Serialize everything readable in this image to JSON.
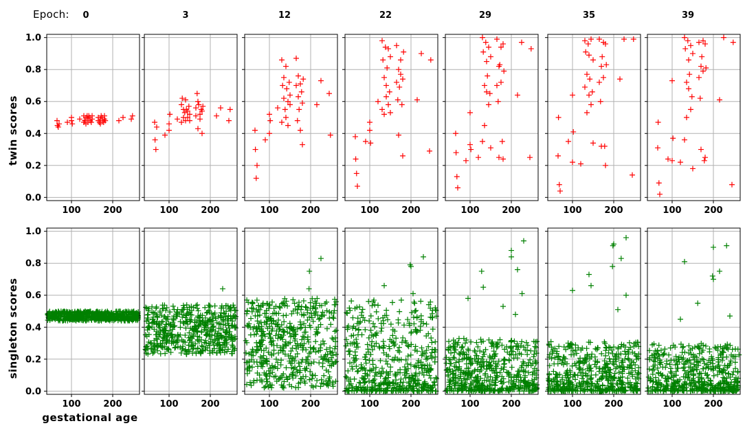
{
  "chart_data": {
    "type": "scatter",
    "marker": "+",
    "epoch_label": "Epoch:",
    "epochs": [
      "0",
      "3",
      "12",
      "22",
      "29",
      "35",
      "39"
    ],
    "xlabel": "gestational age",
    "xlim": [
      40,
      265
    ],
    "xticks": [
      100,
      200
    ],
    "ylim": [
      -0.02,
      1.02
    ],
    "yticks": [
      "0.0",
      "0.2",
      "0.4",
      "0.6",
      "0.8",
      "1.0"
    ],
    "grid": true,
    "rows": [
      {
        "name": "twin scores",
        "ylabel": "twin scores",
        "color": "#ff0000",
        "x": [
          65,
          66,
          68,
          70,
          90,
          100,
          100,
          102,
          120,
          130,
          130,
          132,
          135,
          135,
          138,
          140,
          140,
          142,
          145,
          145,
          148,
          150,
          150,
          165,
          165,
          168,
          170,
          170,
          172,
          175,
          175,
          178,
          180,
          180,
          182,
          215,
          225,
          245,
          248
        ],
        "series": [
          [
            0.48,
            0.45,
            0.44,
            0.46,
            0.47,
            0.48,
            0.5,
            0.46,
            0.49,
            0.47,
            0.51,
            0.48,
            0.5,
            0.46,
            0.51,
            0.49,
            0.47,
            0.51,
            0.48,
            0.5,
            0.47,
            0.49,
            0.51,
            0.48,
            0.5,
            0.47,
            0.49,
            0.46,
            0.51,
            0.48,
            0.5,
            0.47,
            0.49,
            0.51,
            0.48,
            0.48,
            0.5,
            0.49,
            0.51
          ],
          [
            0.47,
            0.36,
            0.3,
            0.44,
            0.39,
            0.42,
            0.46,
            0.52,
            0.49,
            0.47,
            0.58,
            0.62,
            0.55,
            0.5,
            0.53,
            0.61,
            0.48,
            0.55,
            0.5,
            0.54,
            0.57,
            0.52,
            0.48,
            0.56,
            0.51,
            0.65,
            0.6,
            0.43,
            0.58,
            0.49,
            0.52,
            0.55,
            0.4,
            0.54,
            0.57,
            0.51,
            0.56,
            0.48,
            0.55
          ],
          [
            0.42,
            0.3,
            0.12,
            0.2,
            0.36,
            0.4,
            0.52,
            0.48,
            0.56,
            0.47,
            0.86,
            0.7,
            0.62,
            0.75,
            0.55,
            0.5,
            0.82,
            0.68,
            0.6,
            0.45,
            0.72,
            0.58,
            0.64,
            0.87,
            0.7,
            0.48,
            0.76,
            0.63,
            0.55,
            0.42,
            0.71,
            0.66,
            0.33,
            0.59,
            0.74,
            0.58,
            0.73,
            0.65,
            0.39
          ],
          [
            0.38,
            0.24,
            0.15,
            0.07,
            0.35,
            0.42,
            0.47,
            0.34,
            0.6,
            0.55,
            0.98,
            0.86,
            0.75,
            0.52,
            0.94,
            0.63,
            0.7,
            0.81,
            0.58,
            0.93,
            0.66,
            0.53,
            0.88,
            0.72,
            0.95,
            0.61,
            0.8,
            0.39,
            0.69,
            0.86,
            0.77,
            0.58,
            0.74,
            0.26,
            0.91,
            0.61,
            0.9,
            0.29,
            0.86
          ],
          [
            0.4,
            0.28,
            0.13,
            0.06,
            0.23,
            0.33,
            0.53,
            0.3,
            0.25,
            0.35,
            1.0,
            0.91,
            0.7,
            0.45,
            0.97,
            0.66,
            0.85,
            0.76,
            0.58,
            0.94,
            0.65,
            0.31,
            0.88,
            0.7,
            0.99,
            0.6,
            0.82,
            0.25,
            0.83,
            0.94,
            0.72,
            0.35,
            0.96,
            0.24,
            0.79,
            0.64,
            0.97,
            0.25,
            0.93
          ],
          [
            0.26,
            0.5,
            0.08,
            0.04,
            0.35,
            0.22,
            0.64,
            0.41,
            0.21,
            0.69,
            0.98,
            0.91,
            0.77,
            0.53,
            0.96,
            0.64,
            0.89,
            0.74,
            0.58,
            0.99,
            0.66,
            0.34,
            0.86,
            0.72,
            0.99,
            0.6,
            0.82,
            0.32,
            0.88,
            0.97,
            0.75,
            0.32,
            0.96,
            0.2,
            0.83,
            0.74,
            0.99,
            0.14,
            0.99
          ],
          [
            0.31,
            0.47,
            0.09,
            0.02,
            0.24,
            0.23,
            0.73,
            0.37,
            0.22,
            0.36,
            1.0,
            0.93,
            0.72,
            0.5,
            0.98,
            0.68,
            0.86,
            0.77,
            0.55,
            0.95,
            0.63,
            0.18,
            0.9,
            0.75,
            0.97,
            0.62,
            0.82,
            0.3,
            0.88,
            0.98,
            0.79,
            0.23,
            0.96,
            0.25,
            0.81,
            0.61,
            1.0,
            0.08,
            0.97
          ]
        ]
      },
      {
        "name": "singleton scores",
        "ylabel": "singleton scores",
        "color": "#008000",
        "xrange": [
          42,
          262
        ],
        "n_points": 520,
        "ranges": [
          [
            0.44,
            0.5
          ],
          [
            0.23,
            0.54
          ],
          [
            0.02,
            0.58
          ],
          [
            0.0,
            0.57
          ],
          [
            0.0,
            0.33
          ],
          [
            0.0,
            0.31
          ],
          [
            0.0,
            0.3
          ]
        ],
        "outliers": [
          [],
          [
            [
              230,
              0.64
            ]
          ],
          [
            [
              225,
              0.83
            ],
            [
              197,
              0.75
            ],
            [
              196,
              0.64
            ]
          ],
          [
            [
              230,
              0.84
            ],
            [
              198,
              0.79
            ],
            [
              200,
              0.78
            ],
            [
              135,
              0.66
            ],
            [
              205,
              0.61
            ]
          ],
          [
            [
              230,
              0.94
            ],
            [
              200,
              0.88
            ],
            [
              200,
              0.84
            ],
            [
              215,
              0.76
            ],
            [
              128,
              0.75
            ],
            [
              132,
              0.65
            ],
            [
              226,
              0.61
            ],
            [
              95,
              0.58
            ],
            [
              180,
              0.53
            ],
            [
              210,
              0.48
            ]
          ],
          [
            [
              230,
              0.96
            ],
            [
              200,
              0.92
            ],
            [
              198,
              0.91
            ],
            [
              218,
              0.83
            ],
            [
              197,
              0.78
            ],
            [
              140,
              0.73
            ],
            [
              145,
              0.66
            ],
            [
              100,
              0.63
            ],
            [
              230,
              0.6
            ],
            [
              210,
              0.51
            ]
          ],
          [
            [
              232,
              0.91
            ],
            [
              200,
              0.9
            ],
            [
              130,
              0.81
            ],
            [
              215,
              0.75
            ],
            [
              198,
              0.72
            ],
            [
              200,
              0.7
            ],
            [
              162,
              0.55
            ],
            [
              240,
              0.47
            ],
            [
              120,
              0.45
            ]
          ]
        ]
      }
    ]
  }
}
